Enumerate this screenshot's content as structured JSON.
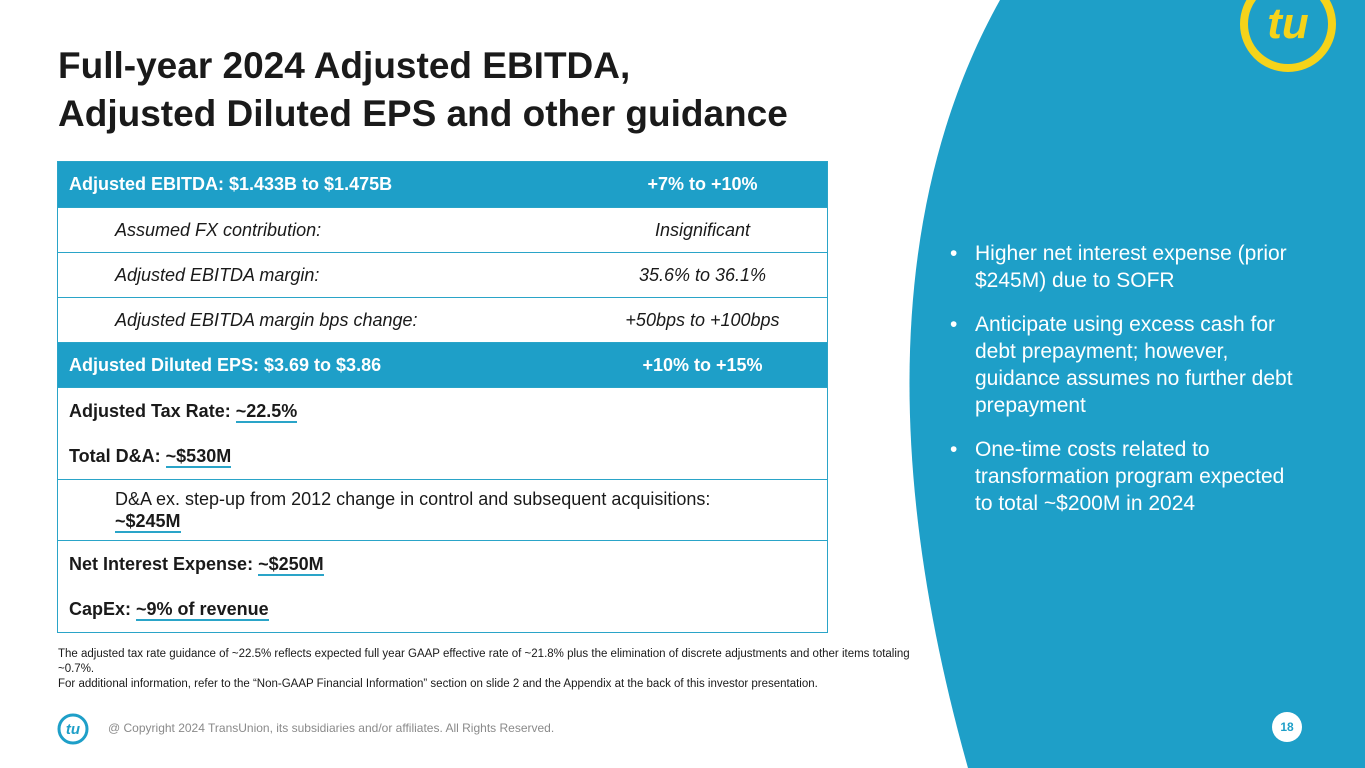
{
  "title": {
    "line1": "Full-year 2024 Adjusted EBITDA,",
    "line2": "Adjusted Diluted EPS and other guidance"
  },
  "table": {
    "ebitda": {
      "label": "Adjusted EBITDA: $1.433B to $1.475B",
      "value": "+7% to +10%"
    },
    "fx": {
      "label": "Assumed FX contribution:",
      "value": "Insignificant"
    },
    "margin": {
      "label": "Adjusted EBITDA margin:",
      "value": "35.6% to 36.1%"
    },
    "margin_bps": {
      "label": "Adjusted EBITDA margin bps change:",
      "value": "+50bps to +100bps"
    },
    "eps": {
      "label": "Adjusted Diluted EPS: $3.69 to $3.86",
      "value": "+10% to +15%"
    },
    "tax": {
      "label": "Adjusted Tax Rate: ",
      "value": "~22.5%"
    },
    "da": {
      "label": "Total D&A: ",
      "value": "~$530M"
    },
    "da_ex": {
      "label": "D&A ex. step-up from 2012 change in control and subsequent acquisitions:",
      "value": "~$245M"
    },
    "interest": {
      "label": "Net Interest Expense: ",
      "value": "~$250M"
    },
    "capex": {
      "label": "CapEx: ",
      "value": "~9% of revenue"
    }
  },
  "bullets": [
    "Higher net interest expense (prior $245M) due to SOFR",
    "Anticipate using excess cash for debt prepayment; however, guidance assumes no further debt prepayment",
    "One-time costs related to transformation program expected to total ~$200M in 2024"
  ],
  "footnote": {
    "line1": "The adjusted tax rate guidance of ~22.5% reflects expected full year GAAP effective rate of ~21.8% plus the elimination of discrete adjustments and other items totaling ~0.7%.",
    "line2": "For additional information, refer to the “Non-GAAP Financial Information” section on slide 2 and the Appendix at the back of this investor presentation."
  },
  "footer": {
    "copyright": "@ Copyright 2024 TransUnion, its subsidiaries and/or affiliates.  All Rights Reserved.",
    "page_number": "18"
  },
  "brand": {
    "logo_text": "tu"
  },
  "colors": {
    "accent": "#1e9fc8",
    "logo_yellow": "#f5d31a"
  },
  "icons": {
    "brand_logo": "transunion-logo-icon",
    "footer_logo": "transunion-logo-icon"
  }
}
